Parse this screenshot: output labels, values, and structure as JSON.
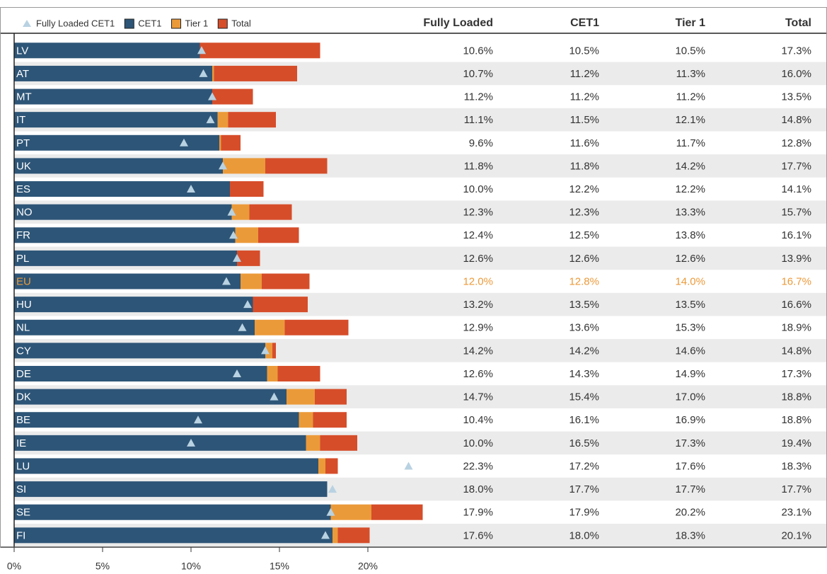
{
  "chart_data": {
    "type": "bar",
    "categories": [
      "LV",
      "AT",
      "MT",
      "IT",
      "PT",
      "UK",
      "ES",
      "NO",
      "FR",
      "PL",
      "EU",
      "HU",
      "NL",
      "CY",
      "DE",
      "DK",
      "BE",
      "IE",
      "LU",
      "SI",
      "SE",
      "FI"
    ],
    "highlight_index": 10,
    "highlight_color": "#eb9a3a",
    "column_headers": [
      "Fully Loaded",
      "CET1",
      "Tier 1",
      "Total"
    ],
    "series": [
      {
        "name": "Fully Loaded CET1",
        "color": "#b9d2e2",
        "marker": "triangle",
        "values": [
          10.6,
          10.7,
          11.2,
          11.1,
          9.6,
          11.8,
          10.0,
          12.3,
          12.4,
          12.6,
          12.0,
          13.2,
          12.9,
          14.2,
          12.6,
          14.7,
          10.4,
          10.0,
          22.3,
          18.0,
          17.9,
          17.6
        ],
        "value_labels": [
          "10.6%",
          "10.7%",
          "11.2%",
          "11.1%",
          "9.6%",
          "11.8%",
          "10.0%",
          "12.3%",
          "12.4%",
          "12.6%",
          "12.0%",
          "13.2%",
          "12.9%",
          "14.2%",
          "12.6%",
          "14.7%",
          "10.4%",
          "10.0%",
          "22.3%",
          "18.0%",
          "17.9%",
          "17.6%"
        ]
      },
      {
        "name": "CET1",
        "color": "#2d5577",
        "values": [
          10.5,
          11.2,
          11.2,
          11.5,
          11.6,
          11.8,
          12.2,
          12.3,
          12.5,
          12.6,
          12.8,
          13.5,
          13.6,
          14.2,
          14.3,
          15.4,
          16.1,
          16.5,
          17.2,
          17.7,
          17.9,
          18.0
        ],
        "value_labels": [
          "10.5%",
          "11.2%",
          "11.2%",
          "11.5%",
          "11.6%",
          "11.8%",
          "12.2%",
          "12.3%",
          "12.5%",
          "12.6%",
          "12.8%",
          "13.5%",
          "13.6%",
          "14.2%",
          "14.3%",
          "15.4%",
          "16.1%",
          "16.5%",
          "17.2%",
          "17.7%",
          "17.9%",
          "18.0%"
        ]
      },
      {
        "name": "Tier 1",
        "color": "#eb9a3a",
        "values": [
          10.5,
          11.3,
          11.2,
          12.1,
          11.7,
          14.2,
          12.2,
          13.3,
          13.8,
          12.6,
          14.0,
          13.5,
          15.3,
          14.6,
          14.9,
          17.0,
          16.9,
          17.3,
          17.6,
          17.7,
          20.2,
          18.3
        ],
        "value_labels": [
          "10.5%",
          "11.3%",
          "11.2%",
          "12.1%",
          "11.7%",
          "14.2%",
          "12.2%",
          "13.3%",
          "13.8%",
          "12.6%",
          "14.0%",
          "13.5%",
          "15.3%",
          "14.6%",
          "14.9%",
          "17.0%",
          "16.9%",
          "17.3%",
          "17.6%",
          "17.7%",
          "20.2%",
          "18.3%"
        ]
      },
      {
        "name": "Total",
        "color": "#d64d2a",
        "values": [
          17.3,
          16.0,
          13.5,
          14.8,
          12.8,
          17.7,
          14.1,
          15.7,
          16.1,
          13.9,
          16.7,
          16.6,
          18.9,
          14.8,
          17.3,
          18.8,
          18.8,
          19.4,
          18.3,
          17.7,
          23.1,
          20.1
        ],
        "value_labels": [
          "17.3%",
          "16.0%",
          "13.5%",
          "14.8%",
          "12.8%",
          "17.7%",
          "14.1%",
          "15.7%",
          "16.1%",
          "13.9%",
          "16.7%",
          "16.6%",
          "18.9%",
          "14.8%",
          "17.3%",
          "18.8%",
          "18.8%",
          "19.4%",
          "18.3%",
          "17.7%",
          "23.1%",
          "20.1%"
        ]
      }
    ],
    "xlim": [
      0,
      24
    ],
    "xticks": [
      {
        "value": 0,
        "label": "0%"
      },
      {
        "value": 5,
        "label": "5%"
      },
      {
        "value": 10,
        "label": "10%"
      },
      {
        "value": 15,
        "label": "15%"
      },
      {
        "value": 20,
        "label": "20%"
      }
    ],
    "row_shading": "#ebebeb"
  }
}
